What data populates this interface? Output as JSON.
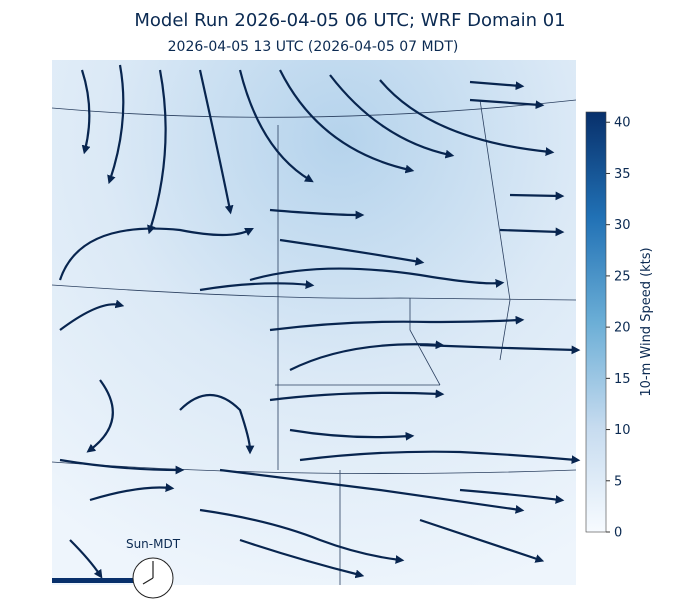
{
  "header": {
    "title": "Model Run 2026-04-05 06 UTC; WRF Domain 01",
    "subtitle": "2026-04-05 13 UTC  (2026-04-05 07 MDT)"
  },
  "colorbar": {
    "label": "10-m Wind Speed (kts)",
    "lim": [
      0,
      41
    ],
    "ticks": [
      0,
      5,
      10,
      15,
      20,
      25,
      30,
      35,
      40
    ]
  },
  "clock": {
    "label": "Sun-MDT"
  }
}
